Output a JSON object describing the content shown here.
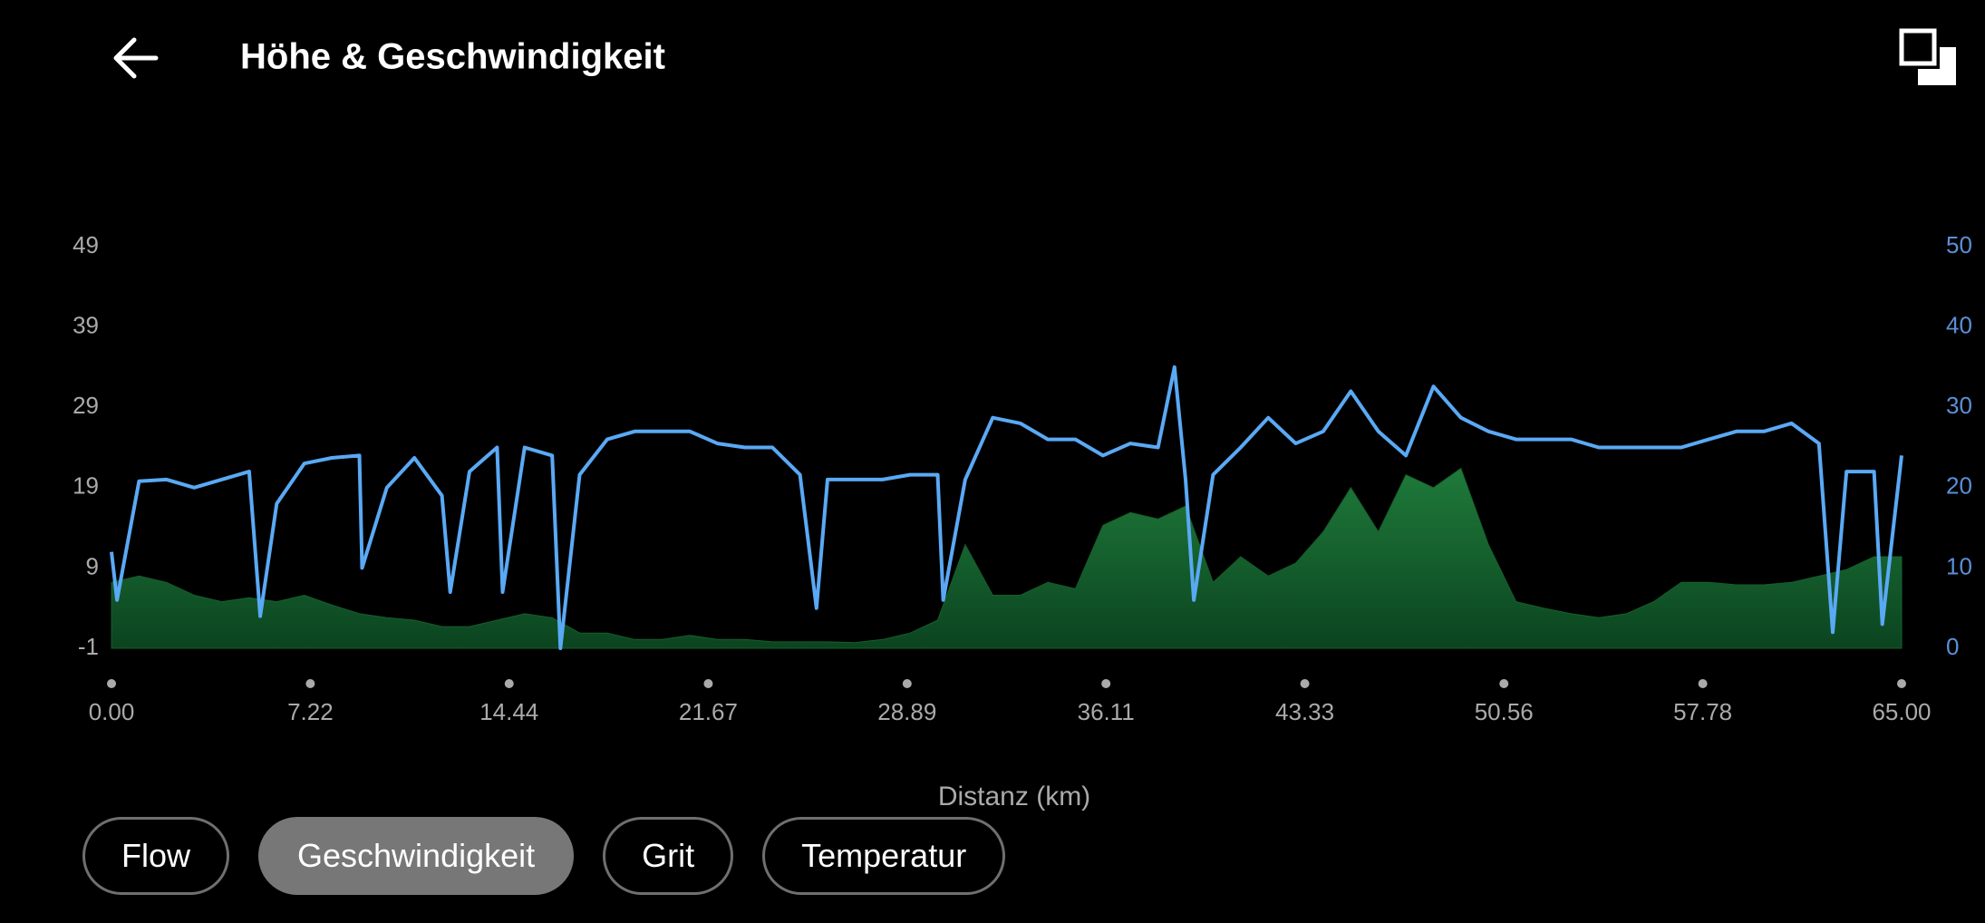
{
  "header": {
    "title": "Höhe & Geschwindigkeit"
  },
  "chart_data": {
    "type": "line",
    "xlabel": "Distanz (km)",
    "xlim": [
      0,
      65
    ],
    "xticks": [
      {
        "value": 0,
        "label": "0.00"
      },
      {
        "value": 7.22,
        "label": "7.22"
      },
      {
        "value": 14.44,
        "label": "14.44"
      },
      {
        "value": 21.67,
        "label": "21.67"
      },
      {
        "value": 28.89,
        "label": "28.89"
      },
      {
        "value": 36.11,
        "label": "36.11"
      },
      {
        "value": 43.33,
        "label": "43.33"
      },
      {
        "value": 50.56,
        "label": "50.56"
      },
      {
        "value": 57.78,
        "label": "57.78"
      },
      {
        "value": 65,
        "label": "65.00"
      }
    ],
    "ylim": [
      -1,
      49
    ],
    "yticks": [
      -1,
      9,
      19,
      29,
      39,
      49
    ],
    "y2lim": [
      0,
      50
    ],
    "y2ticks": [
      0,
      10,
      20,
      30,
      40,
      50
    ],
    "series": [
      {
        "type": "area",
        "color": "#155e2c",
        "x": [
          0,
          1,
          2,
          3,
          4,
          5,
          6,
          7,
          8,
          9,
          10,
          11,
          12,
          13,
          14,
          15,
          16,
          17,
          18,
          19,
          20,
          21,
          22,
          23,
          24,
          25,
          26,
          27,
          28,
          29,
          30,
          31,
          32,
          33,
          34,
          35,
          36,
          37,
          38,
          39,
          40,
          41,
          42,
          43,
          44,
          45,
          46,
          47,
          48,
          49,
          50,
          51,
          52,
          53,
          54,
          55,
          56,
          57,
          58,
          59,
          60,
          61,
          62,
          63,
          64,
          65
        ],
        "values": [
          7.2,
          8,
          7.2,
          5.6,
          4.8,
          5.3,
          4.8,
          5.6,
          4.4,
          3.3,
          2.8,
          2.5,
          1.7,
          1.7,
          2.5,
          3.3,
          2.8,
          0.9,
          0.9,
          0.1,
          0.1,
          0.6,
          0.1,
          0.1,
          -0.2,
          -0.2,
          -0.2,
          -0.3,
          0.1,
          0.9,
          2.5,
          11.9,
          5.6,
          5.6,
          7.2,
          6.4,
          14.3,
          15.9,
          15.1,
          16.7,
          7.2,
          10.4,
          8,
          9.6,
          13.5,
          19,
          13.5,
          20.6,
          19,
          21.4,
          11.9,
          4.8,
          4,
          3.3,
          2.8,
          3.3,
          4.8,
          7.2,
          7.2,
          6.9,
          6.9,
          7.2,
          8,
          8.8,
          10.4,
          10.4
        ]
      },
      {
        "type": "line",
        "axis": "y2",
        "color": "#5aa9f5",
        "x": [
          0,
          0.2,
          1,
          2,
          3,
          4,
          5,
          5.4,
          6,
          7,
          8,
          9,
          9.1,
          10,
          11,
          12,
          12.3,
          13,
          14,
          14.2,
          15,
          16,
          16.3,
          17,
          18,
          19,
          20,
          21,
          22,
          23,
          24,
          25,
          25.6,
          26,
          27,
          28,
          29,
          30,
          30.2,
          31,
          32,
          33,
          34,
          35,
          36,
          37,
          38,
          38.6,
          39,
          39.3,
          40,
          41,
          42,
          43,
          44,
          45,
          46,
          47,
          48,
          49,
          50,
          51,
          52,
          53,
          54,
          55,
          56,
          57,
          58,
          59,
          60,
          61,
          62,
          62.5,
          63,
          64,
          64.3,
          65
        ],
        "values": [
          12,
          6,
          20.8,
          21,
          20,
          21,
          22,
          4,
          18,
          23,
          23.7,
          24,
          10,
          20,
          23.7,
          19,
          7,
          22,
          25,
          7,
          25,
          24,
          0,
          21.6,
          26,
          27,
          27,
          27,
          25.5,
          25,
          25,
          21.6,
          5,
          21,
          21,
          21,
          21.6,
          21.6,
          6,
          21,
          28.7,
          28,
          26,
          26,
          24,
          25.5,
          25,
          35,
          21,
          6,
          21.6,
          25,
          28.7,
          25.5,
          27,
          32,
          27,
          24,
          32.6,
          28.7,
          27,
          26,
          26,
          26,
          25,
          25,
          25,
          25,
          26,
          27,
          27,
          28,
          25.5,
          2,
          22,
          22,
          3,
          24
        ]
      }
    ]
  },
  "buttons": [
    {
      "label": "Flow"
    },
    {
      "label": "Geschwindigkeit",
      "selected": true
    },
    {
      "label": "Grit"
    },
    {
      "label": "Temperatur"
    }
  ]
}
